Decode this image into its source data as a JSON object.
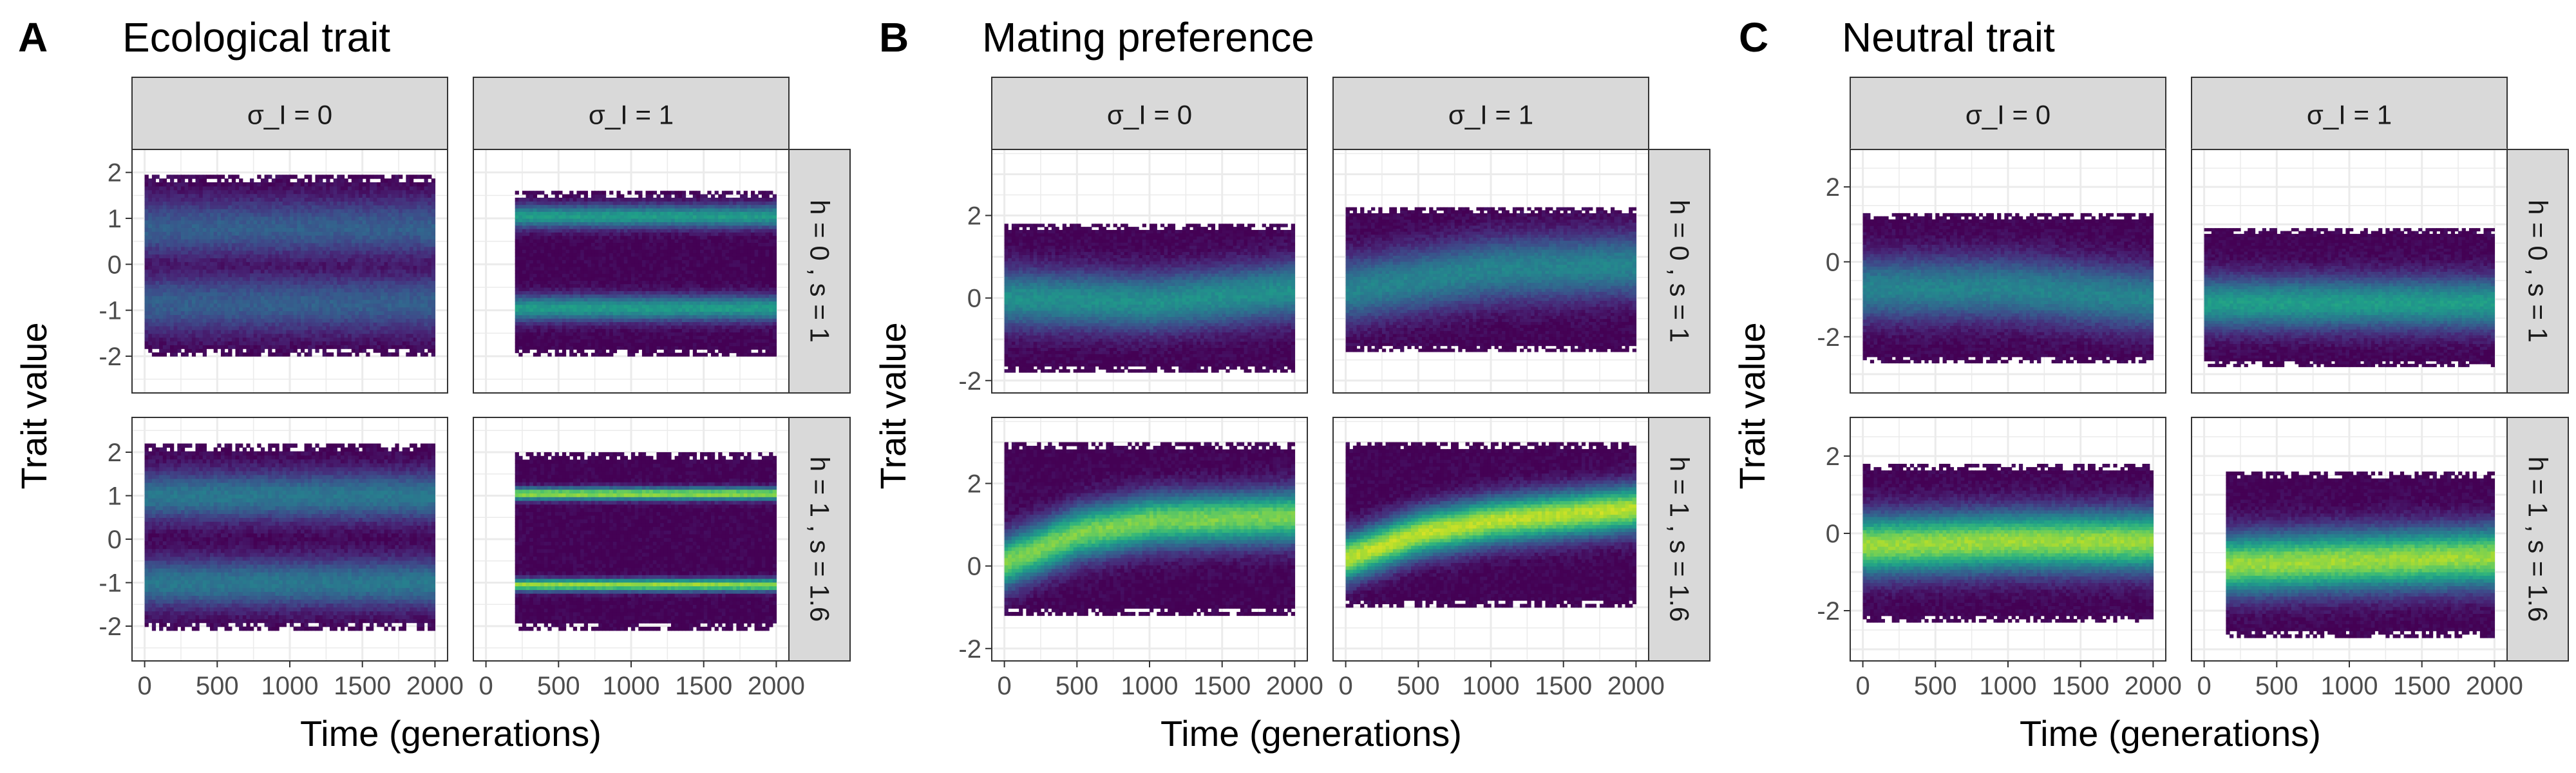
{
  "figure": {
    "x_axis_title": "Time (generations)",
    "y_axis_title": "Trait value",
    "col_strips": [
      "σ_I = 0",
      "σ_I = 1"
    ],
    "row_strips": [
      "h = 0 ,  s = 1",
      "h = 1 ,  s = 1.6"
    ]
  },
  "panels": [
    {
      "letter": "A",
      "title": "Ecological trait"
    },
    {
      "letter": "B",
      "title": "Mating preference"
    },
    {
      "letter": "C",
      "title": "Neutral trait"
    }
  ],
  "chart_data": [
    {
      "type": "heatmap",
      "title": "Ecological trait",
      "xlabel": "Time (generations)",
      "ylabel": "Trait value",
      "xlim": [
        0,
        2000
      ],
      "x_ticks": [
        0,
        500,
        1000,
        1500,
        2000
      ],
      "colormap": "viridis",
      "grid": true,
      "facets": [
        {
          "row": "h = 0 ,  s = 1",
          "col": "σ_I = 0",
          "ylim": [
            -2.8,
            2.5
          ],
          "y_ticks": [
            -2,
            -1,
            0,
            1,
            2
          ],
          "start": 0,
          "modes": [
            {
              "mean": 0.8,
              "sd": 0.45
            },
            {
              "mean": -0.85,
              "sd": 0.45
            }
          ],
          "range": [
            -2.0,
            1.95
          ],
          "peak_density": 0.3
        },
        {
          "row": "h = 0 ,  s = 1",
          "col": "σ_I = 1",
          "ylim": [
            -2.8,
            2.5
          ],
          "y_ticks": [
            -2,
            -1,
            0,
            1,
            2
          ],
          "start": 200,
          "modes": [
            {
              "mean": 1.05,
              "sd": 0.18
            },
            {
              "mean": -0.95,
              "sd": 0.2
            }
          ],
          "range": [
            -2.0,
            1.6
          ],
          "peak_density": 0.55
        },
        {
          "row": "h = 1 ,  s = 1.6",
          "col": "σ_I = 0",
          "ylim": [
            -2.8,
            2.8
          ],
          "y_ticks": [
            -2,
            -1,
            0,
            1,
            2
          ],
          "start": 0,
          "modes": [
            {
              "mean": 1.0,
              "sd": 0.4
            },
            {
              "mean": -1.0,
              "sd": 0.4
            }
          ],
          "range": [
            -2.1,
            2.2
          ],
          "peak_density": 0.4
        },
        {
          "row": "h = 1 ,  s = 1.6",
          "col": "σ_I = 1",
          "ylim": [
            -2.8,
            2.8
          ],
          "y_ticks": [
            -2,
            -1,
            0,
            1,
            2
          ],
          "start": 200,
          "modes": [
            {
              "mean": 1.05,
              "sd": 0.1
            },
            {
              "mean": -1.05,
              "sd": 0.1
            }
          ],
          "range": [
            -2.1,
            2.0
          ],
          "peak_density": 0.85
        }
      ]
    },
    {
      "type": "heatmap",
      "title": "Mating preference",
      "xlabel": "Time (generations)",
      "ylabel": "Trait value",
      "xlim": [
        0,
        2000
      ],
      "x_ticks": [
        0,
        500,
        1000,
        1500,
        2000
      ],
      "colormap": "viridis",
      "grid": true,
      "facets": [
        {
          "row": "h = 0 ,  s = 1",
          "col": "σ_I = 0",
          "ylim": [
            -2.3,
            3.6
          ],
          "y_ticks": [
            -2,
            0,
            2
          ],
          "start": 0,
          "mean_path": [
            [
              0,
              0
            ],
            [
              1000,
              -0.1
            ],
            [
              2000,
              0.2
            ]
          ],
          "sd": 0.5,
          "range": [
            -1.8,
            1.8
          ],
          "peak_density": 0.5
        },
        {
          "row": "h = 0 ,  s = 1",
          "col": "σ_I = 1",
          "ylim": [
            -2.3,
            3.6
          ],
          "y_ticks": [
            -2,
            0,
            2
          ],
          "start": 0,
          "mean_path": [
            [
              0,
              0.2
            ],
            [
              1000,
              0.7
            ],
            [
              2000,
              0.8
            ]
          ],
          "sd": 0.55,
          "range": [
            -1.3,
            2.2
          ],
          "peak_density": 0.45
        },
        {
          "row": "h = 1 ,  s = 1.6",
          "col": "σ_I = 0",
          "ylim": [
            -2.3,
            3.6
          ],
          "y_ticks": [
            -2,
            0,
            2
          ],
          "start": 0,
          "mean_path": [
            [
              0,
              0.1
            ],
            [
              500,
              0.8
            ],
            [
              1000,
              1.1
            ],
            [
              2000,
              1.2
            ]
          ],
          "sd": 0.45,
          "range": [
            -1.2,
            3.0
          ],
          "peak_density": 0.8
        },
        {
          "row": "h = 1 ,  s = 1.6",
          "col": "σ_I = 1",
          "ylim": [
            -2.3,
            3.6
          ],
          "y_ticks": [
            -2,
            0,
            2
          ],
          "start": 0,
          "mean_path": [
            [
              0,
              0.2
            ],
            [
              500,
              0.8
            ],
            [
              1000,
              1.1
            ],
            [
              2000,
              1.4
            ]
          ],
          "sd": 0.4,
          "range": [
            -1.0,
            3.0
          ],
          "peak_density": 0.9
        }
      ]
    },
    {
      "type": "heatmap",
      "title": "Neutral trait",
      "xlabel": "Time (generations)",
      "ylabel": "Trait value",
      "xlim": [
        0,
        2000
      ],
      "x_ticks": [
        0,
        500,
        1000,
        1500,
        2000
      ],
      "colormap": "viridis",
      "grid": true,
      "facets": [
        {
          "row": "h = 0 ,  s = 1",
          "col": "σ_I = 0",
          "ylim": [
            -3.5,
            3.0
          ],
          "y_ticks": [
            -2,
            0,
            2
          ],
          "start": 0,
          "mean_path": [
            [
              0,
              -0.7
            ],
            [
              1000,
              -0.7
            ],
            [
              2000,
              -1.0
            ]
          ],
          "sd": 0.6,
          "range": [
            -2.7,
            1.3
          ],
          "peak_density": 0.45
        },
        {
          "row": "h = 0 ,  s = 1",
          "col": "σ_I = 1",
          "ylim": [
            -3.5,
            3.0
          ],
          "y_ticks": [
            -2,
            0,
            2
          ],
          "start": 0,
          "mean_path": [
            [
              0,
              -1.1
            ],
            [
              1000,
              -1.1
            ],
            [
              2000,
              -1.1
            ]
          ],
          "sd": 0.5,
          "range": [
            -2.8,
            0.9
          ],
          "peak_density": 0.55
        },
        {
          "row": "h = 1 ,  s = 1.6",
          "col": "σ_I = 0",
          "ylim": [
            -3.3,
            3.0
          ],
          "y_ticks": [
            -2,
            0,
            2
          ],
          "start": 0,
          "mean_path": [
            [
              0,
              -0.3
            ],
            [
              1000,
              -0.2
            ],
            [
              2000,
              -0.2
            ]
          ],
          "sd": 0.55,
          "range": [
            -2.3,
            1.8
          ],
          "peak_density": 0.85
        },
        {
          "row": "h = 1 ,  s = 1.6",
          "col": "σ_I = 1",
          "ylim": [
            -3.3,
            3.0
          ],
          "y_ticks": [
            -2,
            0,
            2
          ],
          "start": 150,
          "mean_path": [
            [
              150,
              -0.8
            ],
            [
              1000,
              -0.7
            ],
            [
              2000,
              -0.6
            ]
          ],
          "sd": 0.55,
          "range": [
            -2.7,
            1.6
          ],
          "peak_density": 0.85
        }
      ]
    }
  ]
}
